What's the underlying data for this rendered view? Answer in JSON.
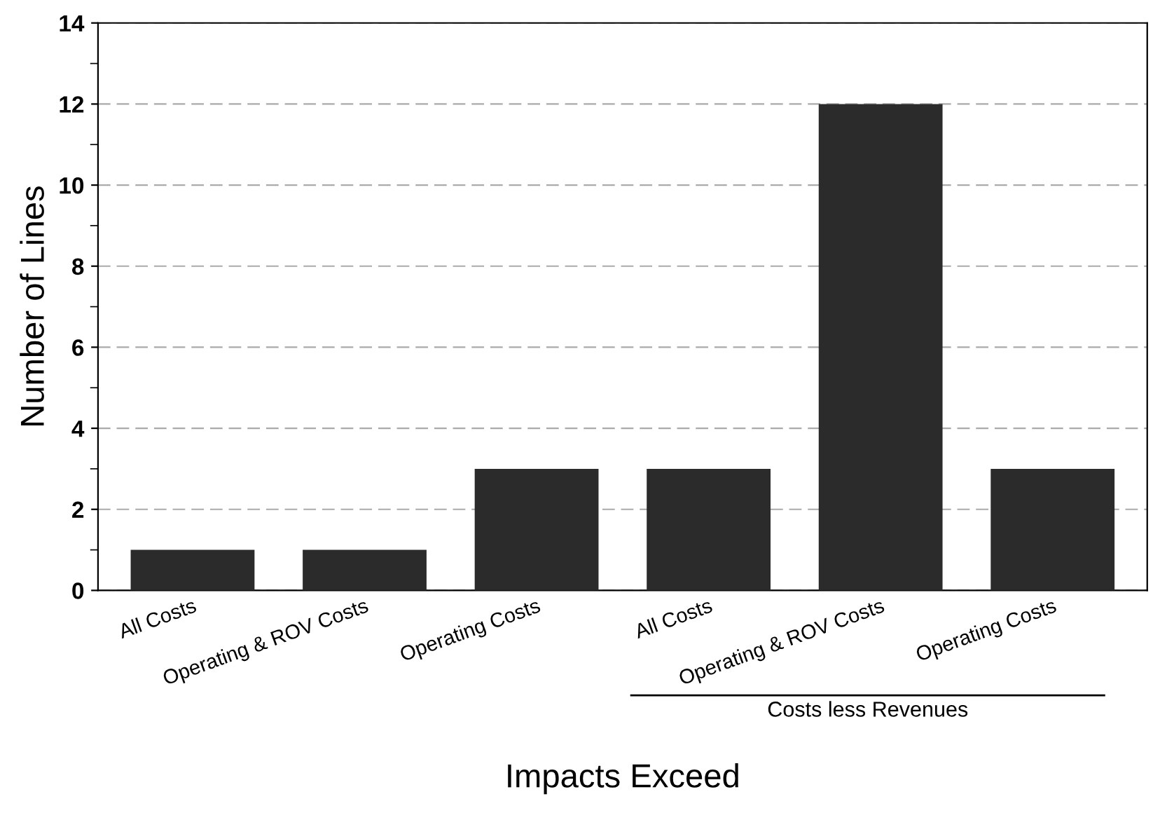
{
  "chart_data": {
    "type": "bar",
    "xlabel": "Impacts Exceed",
    "ylabel": "Number of Lines",
    "categories": [
      "All Costs",
      "Operating & ROV Costs",
      "Operating Costs",
      "All Costs",
      "Operating & ROV Costs",
      "Operating Costs"
    ],
    "values": [
      1,
      1,
      3,
      3,
      12,
      3
    ],
    "color": "#2b2b2b",
    "ylim": [
      0,
      14
    ],
    "yticks": [
      0,
      2,
      4,
      6,
      8,
      10,
      12,
      14
    ],
    "grid": "y",
    "legend": false,
    "annotations": [
      "Costs less Revenues"
    ]
  }
}
